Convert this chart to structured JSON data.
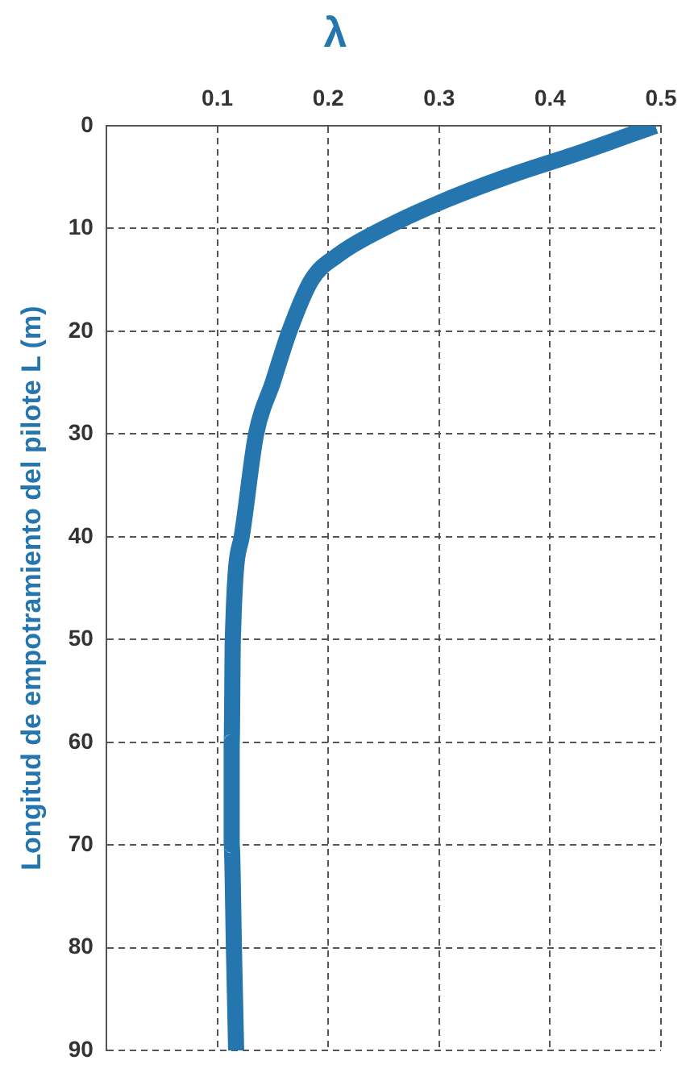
{
  "chart_data": {
    "type": "line",
    "title": "λ",
    "ylabel": "Longitud de empotramiento del pilote L (m)",
    "x": [
      0.495,
      0.43,
      0.36,
      0.3,
      0.25,
      0.21,
      0.185,
      0.165,
      0.15,
      0.135,
      0.122,
      0.114,
      0.113,
      0.113,
      0.115,
      0.117
    ],
    "series": [
      {
        "color": "#2576ae",
        "values": [
          0,
          2.5,
          5,
          7.5,
          10,
          12.5,
          15,
          20,
          25,
          30,
          40,
          50,
          60,
          70,
          80,
          90
        ]
      }
    ],
    "xlim": [
      0,
      0.5
    ],
    "xticks": [
      {
        "value": 0,
        "label": null
      },
      0.1,
      0.2,
      0.3,
      0.4,
      0.5
    ],
    "ylim": [
      90,
      0
    ],
    "yticks": [
      0,
      10,
      20,
      30,
      40,
      50,
      60,
      70,
      80,
      90
    ],
    "grid": true,
    "line_style": "solid",
    "marker": "none"
  }
}
